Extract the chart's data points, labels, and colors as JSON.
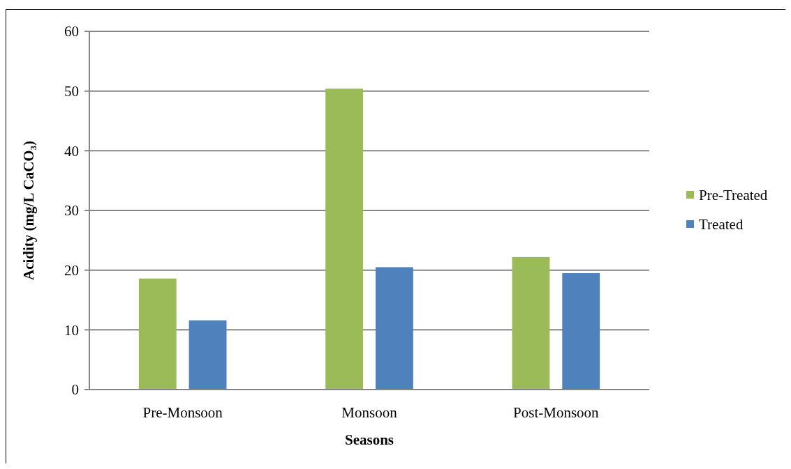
{
  "chart_data": {
    "type": "bar",
    "xlabel": "Seasons",
    "ylabel": "Acidity (mg/L CaCO₃)",
    "categories": [
      "Pre-Monsoon",
      "Monsoon",
      "Post-Monsoon"
    ],
    "series": [
      {
        "name": "Pre-Treated",
        "color": "#9bbb59",
        "values": [
          18.6,
          50.4,
          22.2
        ]
      },
      {
        "name": "Treated",
        "color": "#4f81bd",
        "values": [
          11.6,
          20.5,
          19.5
        ]
      }
    ],
    "ylim": [
      0,
      60
    ],
    "yticks": [
      0,
      10,
      20,
      30,
      40,
      50,
      60
    ],
    "grid": "y",
    "legend": "right"
  }
}
